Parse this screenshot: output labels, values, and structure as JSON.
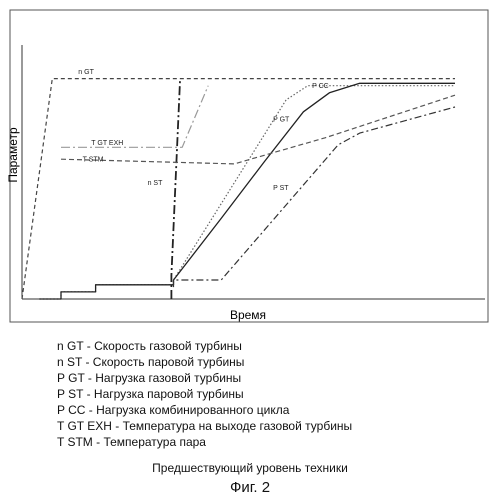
{
  "chart_data": {
    "type": "line",
    "xlabel": "Время",
    "ylabel": "Параметр",
    "xlim": [
      0,
      100
    ],
    "ylim": [
      0,
      100
    ],
    "series": [
      {
        "name": "n GT",
        "color": "#444444",
        "dash": "4 3",
        "width": 1.2,
        "points": [
          [
            0,
            0
          ],
          [
            7,
            93
          ],
          [
            100,
            93
          ]
        ]
      },
      {
        "name": "n ST",
        "color": "#222222",
        "dash": "9 3 2 3",
        "width": 1.8,
        "points": [
          [
            34.5,
            0
          ],
          [
            34.5,
            10
          ],
          [
            36.5,
            92
          ]
        ]
      },
      {
        "name": "P GT",
        "color": "#666666",
        "dash": "1.5 2",
        "width": 1.2,
        "points": [
          [
            4,
            0
          ],
          [
            9,
            0
          ],
          [
            9,
            3
          ],
          [
            17,
            3
          ],
          [
            17,
            6
          ],
          [
            35,
            6
          ],
          [
            35,
            8
          ],
          [
            61,
            84
          ],
          [
            66,
            90
          ],
          [
            100,
            90
          ]
        ]
      },
      {
        "name": "P CC",
        "color": "#222222",
        "dash": "",
        "width": 1.3,
        "points": [
          [
            4,
            0
          ],
          [
            9,
            0
          ],
          [
            9,
            3
          ],
          [
            17,
            3
          ],
          [
            17,
            6
          ],
          [
            35,
            6
          ],
          [
            35,
            8
          ],
          [
            46,
            34
          ],
          [
            56,
            58
          ],
          [
            65,
            79
          ],
          [
            71,
            87
          ],
          [
            78,
            91
          ],
          [
            100,
            91
          ]
        ]
      },
      {
        "name": "P ST",
        "color": "#333333",
        "dash": "7 3 2 3",
        "width": 1.2,
        "points": [
          [
            35,
            5
          ],
          [
            35,
            8
          ],
          [
            46,
            8
          ],
          [
            73,
            65
          ],
          [
            78,
            70
          ],
          [
            100,
            81
          ]
        ]
      },
      {
        "name": "T GT EXH",
        "color": "#999999",
        "dash": "9 3 2 3",
        "width": 1.2,
        "points": [
          [
            9,
            64
          ],
          [
            37,
            64
          ],
          [
            43,
            90
          ]
        ]
      },
      {
        "name": "T STM",
        "color": "#555555",
        "dash": "5 3",
        "width": 1.2,
        "points": [
          [
            9,
            59
          ],
          [
            49,
            57
          ],
          [
            70,
            68
          ],
          [
            100,
            86
          ]
        ]
      }
    ],
    "labels": [
      {
        "text": "n GT",
        "x": 13,
        "y": 95
      },
      {
        "text": "n ST",
        "x": 29,
        "y": 48
      },
      {
        "text": "P GT",
        "x": 58,
        "y": 75
      },
      {
        "text": "P CC",
        "x": 67,
        "y": 89
      },
      {
        "text": "P ST",
        "x": 58,
        "y": 46
      },
      {
        "text": "T GT EXH",
        "x": 16,
        "y": 65
      },
      {
        "text": "T STM",
        "x": 14,
        "y": 58
      }
    ]
  },
  "legend": [
    "n GT - Скорость газовой турбины",
    "n ST - Скорость паровой турбины",
    "P GT - Нагрузка газовой турбины",
    "P ST - Нагрузка паровой турбины",
    "P CC - Нагрузка комбинированного цикла",
    "T GT EXH - Температура на выходе газовой турбины",
    "T STM - Температура пара"
  ],
  "caption": {
    "subtitle": "Предшествующий уровень техники",
    "figure": "Фиг. 2"
  }
}
